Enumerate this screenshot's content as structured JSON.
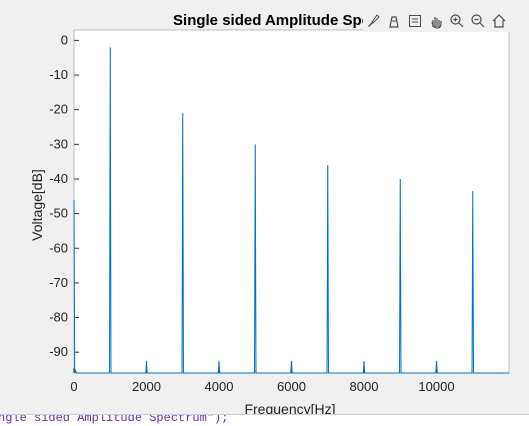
{
  "figure": {
    "title_visible": "Single sided Amplitude Spe",
    "command_text": "ngle sided Amplitude Spectrum\");"
  },
  "toolbar": {
    "icons": [
      "brush-icon",
      "data-tip-icon",
      "legend-icon",
      "pan-icon",
      "zoom-in-icon",
      "zoom-out-icon",
      "home-icon"
    ]
  },
  "chart_data": {
    "type": "line",
    "title": "Single sided Amplitude Spe",
    "xlabel": "Frequency[Hz]",
    "ylabel": "Voltage[dB]",
    "xlim": [
      0,
      12000
    ],
    "ylim": [
      -96,
      3
    ],
    "xticks": [
      0,
      2000,
      4000,
      6000,
      8000,
      10000
    ],
    "yticks": [
      0,
      -10,
      -20,
      -30,
      -40,
      -50,
      -60,
      -70,
      -80,
      -90
    ],
    "grid": false,
    "line_color": "#0072bd",
    "series": [
      {
        "x": [
          0,
          20,
          40,
          60,
          80,
          100,
          500,
          980,
          1000,
          1020,
          1500,
          1980,
          2000,
          2020,
          2500,
          2980,
          3000,
          3020,
          3500,
          3980,
          4000,
          4020,
          4500,
          4980,
          5000,
          5020,
          5500,
          5980,
          6000,
          6020,
          6500,
          6980,
          7000,
          7020,
          7500,
          7980,
          8000,
          8020,
          8500,
          8980,
          9000,
          9020,
          9500,
          9980,
          10000,
          10020,
          10500,
          10980,
          11000,
          11020,
          11500,
          12000
        ],
        "values": [
          -46,
          -96,
          -95,
          -96,
          -96,
          -96,
          -96,
          -96,
          -2,
          -96,
          -96,
          -96,
          -92.5,
          -96,
          -96,
          -96,
          -21,
          -96,
          -96,
          -96,
          -92.5,
          -96,
          -96,
          -96,
          -30,
          -96,
          -96,
          -96,
          -92.5,
          -96,
          -96,
          -96,
          -36,
          -96,
          -96,
          -96,
          -92.5,
          -96,
          -96,
          -96,
          -40,
          -96,
          -96,
          -96,
          -92.5,
          -96,
          -96,
          -96,
          -43.5,
          -96,
          -96,
          -96
        ]
      }
    ]
  }
}
